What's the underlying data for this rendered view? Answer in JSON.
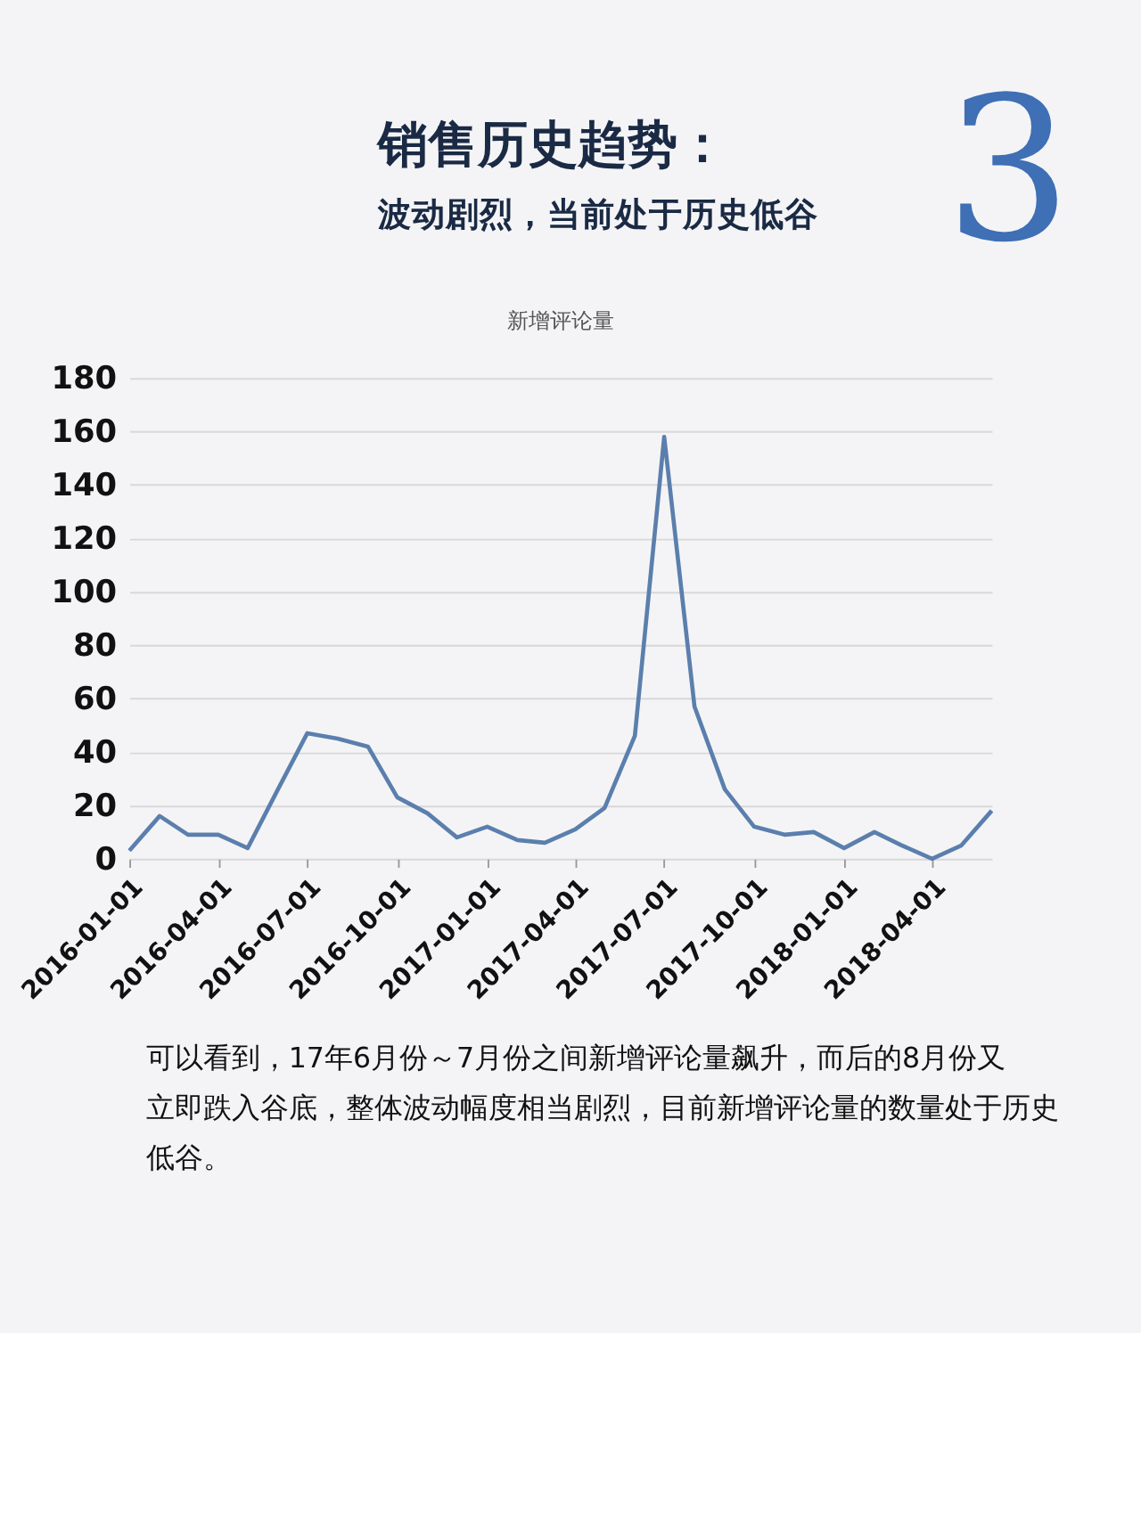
{
  "chart_data": {
    "type": "line",
    "title": "销售历史趋势：",
    "subtitle": "波动剧烈，当前处于历史低谷",
    "annotations": [
      "3",
      "新增评论量",
      "可以看到，17年6月份～7月份之间新增评论量飙升，而后的8月份又立即跌入谷底，整体波动幅度相当剧烈，目前新增评论量的数量处于历史低谷。"
    ],
    "x": [
      "2016-01",
      "2016-02",
      "2016-03",
      "2016-04",
      "2016-05",
      "2016-06",
      "2016-07",
      "2016-08",
      "2016-09",
      "2016-10",
      "2016-11",
      "2016-12",
      "2017-01",
      "2017-02",
      "2017-03",
      "2017-04",
      "2017-05",
      "2017-06",
      "2017-07",
      "2017-08",
      "2017-09",
      "2017-10",
      "2017-11",
      "2017-12",
      "2018-01",
      "2018-02",
      "2018-03",
      "2018-04",
      "2018-05",
      "2018-06"
    ],
    "series": [
      {
        "color": "#5b7fad",
        "values": [
          3,
          16,
          9,
          9,
          4,
          26,
          47,
          45,
          42,
          23,
          17,
          8,
          12,
          7,
          6,
          11,
          19,
          46,
          158,
          57,
          26,
          12,
          9,
          10,
          4,
          10,
          5,
          0,
          5,
          18
        ]
      }
    ],
    "xlim": [
      "2016-01",
      "2018-06"
    ],
    "xticks": [
      "2016-01-01",
      "2016-04-01",
      "2016-07-01",
      "2016-10-01",
      "2017-01-01",
      "2017-04-01",
      "2017-07-01",
      "2017-10-01",
      "2018-01-01",
      "2018-04-01"
    ],
    "ylim": [
      0,
      180
    ],
    "yticks": [
      0,
      20,
      40,
      60,
      80,
      100,
      120,
      140,
      160,
      180
    ],
    "grid": "y",
    "legend": false,
    "marker": "none",
    "line_style": "solid"
  }
}
